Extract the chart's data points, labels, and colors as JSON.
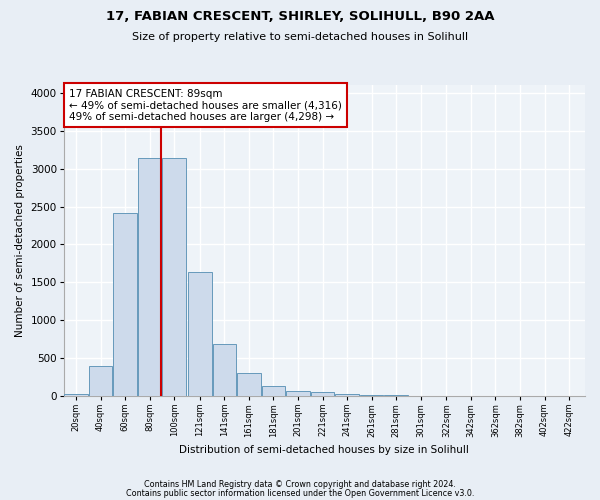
{
  "title1": "17, FABIAN CRESCENT, SHIRLEY, SOLIHULL, B90 2AA",
  "title2": "Size of property relative to semi-detached houses in Solihull",
  "xlabel": "Distribution of semi-detached houses by size in Solihull",
  "ylabel": "Number of semi-detached properties",
  "footnote1": "Contains HM Land Registry data © Crown copyright and database right 2024.",
  "footnote2": "Contains public sector information licensed under the Open Government Licence v3.0.",
  "bar_centers": [
    20,
    40,
    60,
    80,
    100,
    121,
    141,
    161,
    181,
    201,
    221,
    241,
    261,
    281,
    301,
    322,
    342,
    362,
    382,
    402,
    422
  ],
  "bar_heights": [
    25,
    400,
    2420,
    3140,
    3140,
    1630,
    680,
    300,
    135,
    65,
    50,
    30,
    10,
    5,
    3,
    2,
    1,
    1,
    0,
    0,
    0
  ],
  "bar_face_color": "#cddaeb",
  "bar_edge_color": "#6699bb",
  "tick_labels": [
    "20sqm",
    "40sqm",
    "60sqm",
    "80sqm",
    "100sqm",
    "121sqm",
    "141sqm",
    "161sqm",
    "181sqm",
    "201sqm",
    "221sqm",
    "241sqm",
    "261sqm",
    "281sqm",
    "301sqm",
    "322sqm",
    "342sqm",
    "362sqm",
    "382sqm",
    "402sqm",
    "422sqm"
  ],
  "tick_positions": [
    20,
    40,
    60,
    80,
    100,
    121,
    141,
    161,
    181,
    201,
    221,
    241,
    261,
    281,
    301,
    322,
    342,
    362,
    382,
    402,
    422
  ],
  "property_size": 89,
  "vline_color": "#cc0000",
  "annotation_title": "17 FABIAN CRESCENT: 89sqm",
  "annotation_line1": "← 49% of semi-detached houses are smaller (4,316)",
  "annotation_line2": "49% of semi-detached houses are larger (4,298) →",
  "annotation_box_facecolor": "#ffffff",
  "annotation_box_edgecolor": "#cc0000",
  "ylim": [
    0,
    4100
  ],
  "xlim": [
    10,
    435
  ],
  "bg_color": "#e8eef5",
  "plot_bg_color": "#eef3f8",
  "grid_color": "#ffffff",
  "yticks": [
    0,
    500,
    1000,
    1500,
    2000,
    2500,
    3000,
    3500,
    4000
  ]
}
